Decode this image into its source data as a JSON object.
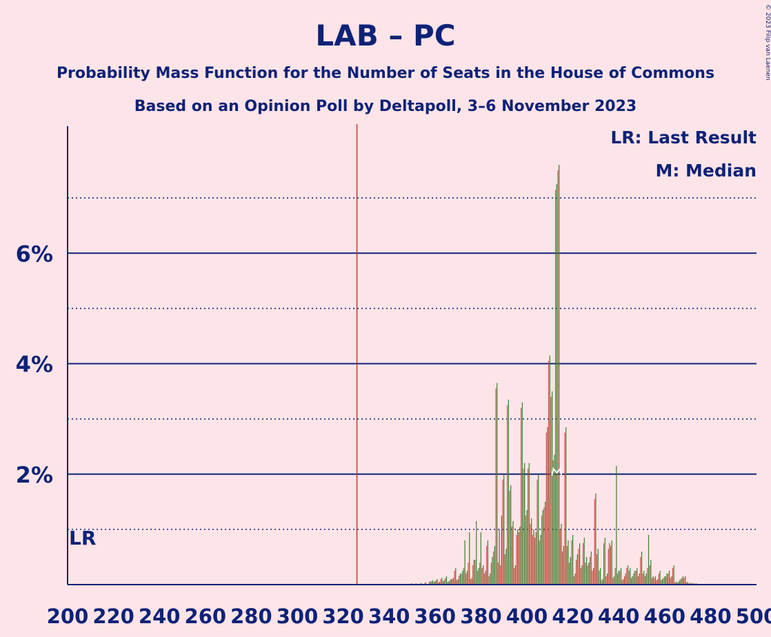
{
  "copyright": "© 2023 Filip van Laenen",
  "chart_data": {
    "type": "bar",
    "title": "LAB – PC",
    "subtitle": "Probability Mass Function for the Number of Seats in the House of Commons",
    "subtitle2": "Based on an Opinion Poll by Deltapoll, 3–6 November 2023",
    "xlabel": "",
    "ylabel": "",
    "xlim": [
      200,
      500
    ],
    "ylim": [
      0,
      8.3
    ],
    "x_ticks": [
      200,
      220,
      240,
      260,
      280,
      300,
      320,
      340,
      360,
      380,
      400,
      420,
      440,
      460,
      480,
      500
    ],
    "x_tick_labels": [
      "200",
      "220",
      "240",
      "260",
      "280",
      "300",
      "320",
      "340",
      "360",
      "380",
      "400",
      "420",
      "440",
      "460",
      "480",
      "500"
    ],
    "y_major_ticks": [
      2,
      4,
      6
    ],
    "y_tick_labels": [
      "2%",
      "4%",
      "6%"
    ],
    "y_minor_ticks": [
      1,
      3,
      5,
      7
    ],
    "grid": true,
    "legend": {
      "placement": "top-right",
      "entries": [
        "LR: Last Result",
        "M: Median"
      ]
    },
    "last_result": {
      "x": 326,
      "label": "LR"
    },
    "median": {
      "x": 413
    },
    "colors": {
      "bar": "#3c7d2a",
      "shadow": "#c0392b",
      "axis": "#0e2277",
      "last_result_line": "#c0392b",
      "median_marker": "#ffffff",
      "background": "#fde4e8"
    },
    "series": [
      {
        "name": "Probability",
        "x": [
          345,
          348,
          350,
          352,
          354,
          356,
          358,
          359,
          360,
          361,
          362,
          363,
          364,
          365,
          366,
          367,
          368,
          369,
          370,
          371,
          372,
          373,
          374,
          375,
          376,
          377,
          378,
          379,
          380,
          381,
          382,
          383,
          384,
          385,
          386,
          387,
          388,
          389,
          390,
          391,
          392,
          393,
          394,
          395,
          396,
          397,
          398,
          399,
          400,
          401,
          402,
          403,
          404,
          405,
          406,
          407,
          408,
          409,
          410,
          411,
          412,
          413,
          414,
          415,
          416,
          417,
          418,
          419,
          420,
          421,
          422,
          423,
          424,
          425,
          426,
          427,
          428,
          429,
          430,
          431,
          432,
          433,
          434,
          435,
          436,
          437,
          438,
          439,
          440,
          441,
          442,
          443,
          444,
          445,
          446,
          447,
          448,
          449,
          450,
          451,
          452,
          453,
          454,
          455,
          456,
          457,
          458,
          459,
          460,
          461,
          462,
          463,
          464,
          465,
          466,
          467,
          468,
          469,
          470,
          471,
          472,
          473,
          474,
          475,
          476,
          477
        ],
        "values": [
          0.01,
          0.01,
          0.02,
          0.02,
          0.03,
          0.04,
          0.06,
          0.08,
          0.06,
          0.1,
          0.05,
          0.12,
          0.08,
          0.15,
          0.06,
          0.1,
          0.12,
          0.3,
          0.1,
          0.2,
          0.25,
          0.8,
          0.25,
          0.95,
          0.12,
          0.45,
          1.15,
          0.3,
          0.95,
          0.35,
          0.25,
          0.8,
          0.2,
          0.5,
          0.7,
          3.65,
          1.0,
          1.25,
          2.0,
          0.65,
          3.35,
          1.8,
          1.15,
          0.35,
          1.0,
          1.05,
          3.3,
          2.2,
          1.35,
          2.2,
          1.2,
          1.0,
          0.95,
          2.0,
          0.9,
          1.35,
          1.5,
          2.85,
          4.15,
          3.5,
          2.35,
          7.25,
          7.6,
          1.1,
          0.7,
          2.85,
          0.8,
          0.5,
          0.9,
          0.2,
          0.55,
          0.75,
          0.35,
          0.85,
          0.5,
          0.4,
          0.6,
          0.3,
          1.65,
          0.65,
          0.3,
          0.1,
          0.85,
          0.2,
          0.75,
          0.8,
          0.15,
          2.15,
          0.25,
          0.3,
          0.1,
          0.2,
          0.35,
          0.3,
          0.15,
          0.25,
          0.3,
          0.2,
          0.6,
          0.25,
          0.2,
          0.9,
          0.45,
          0.15,
          0.15,
          0.1,
          0.25,
          0.1,
          0.15,
          0.2,
          0.25,
          0.15,
          0.35,
          0.05,
          0.05,
          0.1,
          0.15,
          0.15,
          0.05,
          0.03,
          0.03,
          0.02,
          0.02,
          0.01,
          0.01,
          0.01
        ],
        "shadow_values": [
          0.01,
          0.01,
          0.02,
          0.02,
          0.02,
          0.03,
          0.05,
          0.06,
          0.05,
          0.08,
          0.04,
          0.1,
          0.06,
          0.12,
          0.05,
          0.08,
          0.1,
          0.25,
          0.08,
          0.16,
          0.2,
          0.3,
          0.2,
          0.4,
          0.1,
          0.35,
          0.45,
          0.25,
          0.4,
          0.3,
          0.2,
          0.7,
          0.15,
          0.4,
          0.6,
          3.55,
          0.4,
          0.35,
          1.9,
          0.55,
          3.25,
          1.7,
          1.05,
          0.3,
          0.9,
          0.95,
          3.2,
          2.1,
          1.25,
          2.1,
          1.1,
          0.9,
          0.85,
          1.9,
          0.8,
          1.25,
          1.4,
          2.75,
          4.05,
          3.4,
          2.25,
          7.15,
          7.5,
          1.0,
          0.6,
          2.75,
          0.7,
          0.4,
          0.8,
          0.15,
          0.45,
          0.65,
          0.3,
          0.75,
          0.4,
          0.35,
          0.5,
          0.25,
          1.55,
          0.55,
          0.25,
          0.08,
          0.75,
          0.15,
          0.65,
          0.7,
          0.12,
          0.3,
          0.2,
          0.25,
          0.08,
          0.15,
          0.3,
          0.25,
          0.12,
          0.2,
          0.25,
          0.15,
          0.5,
          0.2,
          0.15,
          0.3,
          0.35,
          0.12,
          0.12,
          0.08,
          0.2,
          0.08,
          0.12,
          0.15,
          0.2,
          0.12,
          0.3,
          0.04,
          0.04,
          0.08,
          0.12,
          0.12,
          0.04,
          0.02,
          0.02,
          0.02,
          0.02,
          0.01,
          0.01,
          0.01
        ]
      }
    ]
  }
}
